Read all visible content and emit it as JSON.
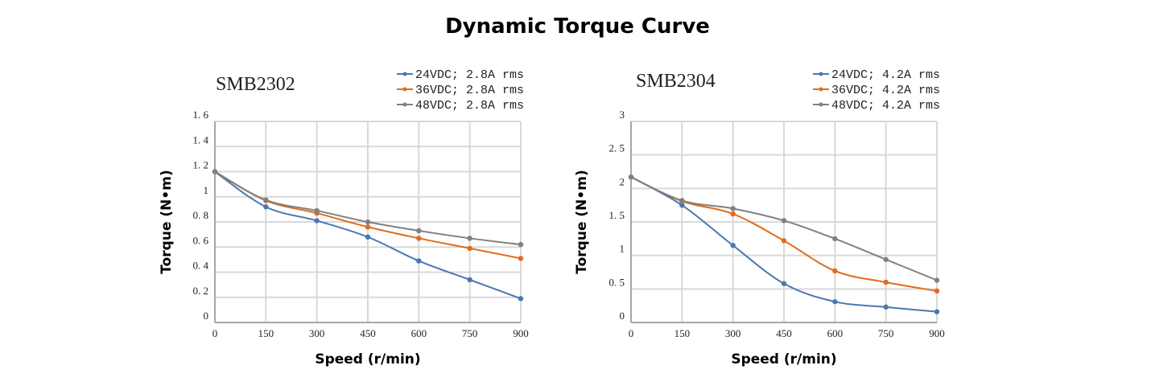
{
  "title": "Dynamic Torque Curve",
  "chart_data": [
    {
      "type": "line",
      "title": "SMB2302",
      "xlabel": "Speed (r/min)",
      "ylabel": "Torque (N•m)",
      "x": [
        0,
        150,
        300,
        450,
        600,
        750,
        900
      ],
      "xlim": [
        0,
        900
      ],
      "ylim": [
        0,
        1.6
      ],
      "xticks": [
        "0",
        "150",
        "300",
        "450",
        "600",
        "750",
        "900"
      ],
      "yticks": [
        "0",
        "0.2",
        "0.4",
        "0.6",
        "0.8",
        "1",
        "1.2",
        "1.4",
        "1.6"
      ],
      "grid": true,
      "legend": "top-right",
      "series": [
        {
          "name": "24VDC; 2.8A rms",
          "color": "#4a78b0",
          "values": [
            1.2,
            0.92,
            0.81,
            0.68,
            0.49,
            0.34,
            0.19
          ]
        },
        {
          "name": "36VDC; 2.8A rms",
          "color": "#e06c1c",
          "values": [
            1.2,
            0.97,
            0.87,
            0.76,
            0.67,
            0.59,
            0.51
          ]
        },
        {
          "name": "48VDC; 2.8A rms",
          "color": "#808080",
          "values": [
            1.2,
            0.975,
            0.89,
            0.8,
            0.73,
            0.67,
            0.62
          ]
        }
      ]
    },
    {
      "type": "line",
      "title": "SMB2304",
      "xlabel": "Speed (r/min)",
      "ylabel": "Torque (N•m)",
      "x": [
        0,
        150,
        300,
        450,
        600,
        750,
        900
      ],
      "xlim": [
        0,
        900
      ],
      "ylim": [
        0,
        3
      ],
      "xticks": [
        "0",
        "150",
        "300",
        "450",
        "600",
        "750",
        "900"
      ],
      "yticks": [
        "0",
        "0.5",
        "1",
        "1.5",
        "2",
        "2.5",
        "3"
      ],
      "grid": true,
      "legend": "top-right",
      "series": [
        {
          "name": "24VDC; 4.2A rms",
          "color": "#4a78b0",
          "values": [
            2.17,
            1.75,
            1.15,
            0.58,
            0.31,
            0.23,
            0.16
          ]
        },
        {
          "name": "36VDC; 4.2A rms",
          "color": "#e06c1c",
          "values": [
            2.17,
            1.81,
            1.62,
            1.22,
            0.77,
            0.6,
            0.47
          ]
        },
        {
          "name": "48VDC; 4.2A rms",
          "color": "#808080",
          "values": [
            2.17,
            1.82,
            1.7,
            1.52,
            1.25,
            0.94,
            0.63
          ]
        }
      ]
    }
  ]
}
